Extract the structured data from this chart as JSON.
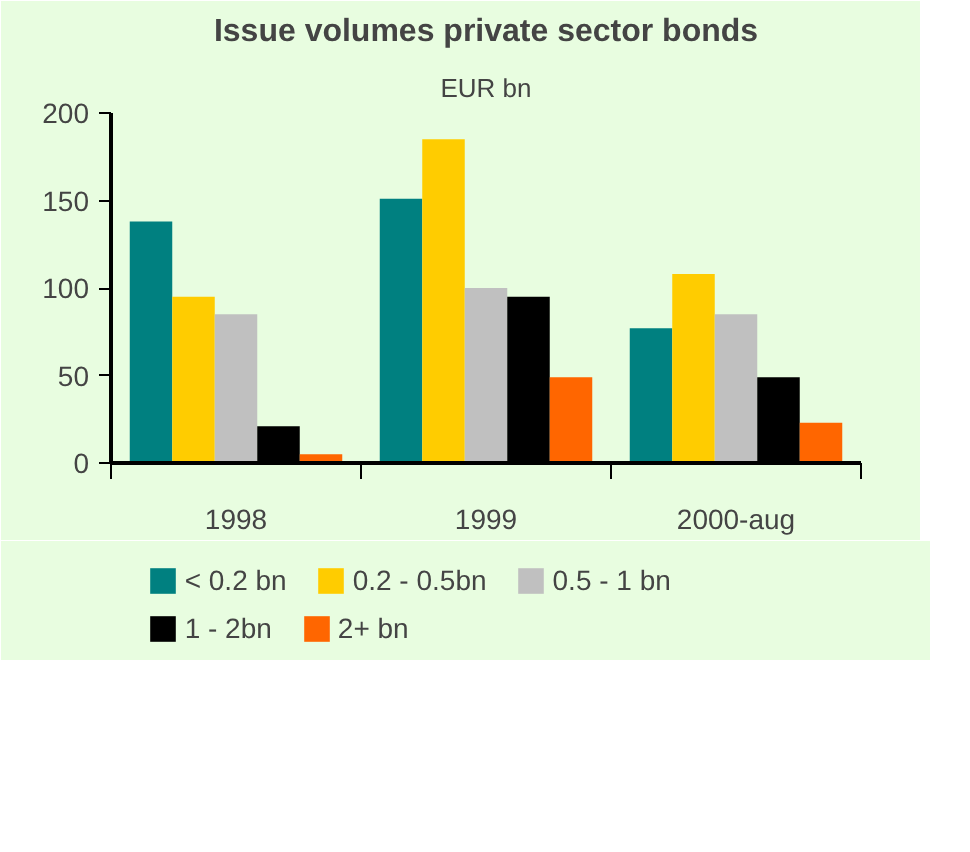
{
  "chart_data": {
    "type": "bar",
    "title": "Issue volumes private sector bonds",
    "subtitle": "EUR bn",
    "categories": [
      "1998",
      "1999",
      "2000-aug"
    ],
    "series": [
      {
        "name": "< 0.2 bn",
        "color": "#008080",
        "values": [
          138,
          151,
          77
        ]
      },
      {
        "name": "0.2 - 0.5bn",
        "color": "#ffcc00",
        "values": [
          95,
          185,
          108
        ]
      },
      {
        "name": "0.5 - 1 bn",
        "color": "#c0c0c0",
        "values": [
          85,
          100,
          85
        ]
      },
      {
        "name": "1 - 2bn",
        "color": "#000000",
        "values": [
          21,
          95,
          49
        ]
      },
      {
        "name": "2+ bn",
        "color": "#ff6600",
        "values": [
          5,
          49,
          23
        ]
      }
    ],
    "ylim": [
      0,
      200
    ],
    "yticks": [
      0,
      50,
      100,
      150,
      200
    ],
    "grid": false,
    "legend": "bottom"
  }
}
